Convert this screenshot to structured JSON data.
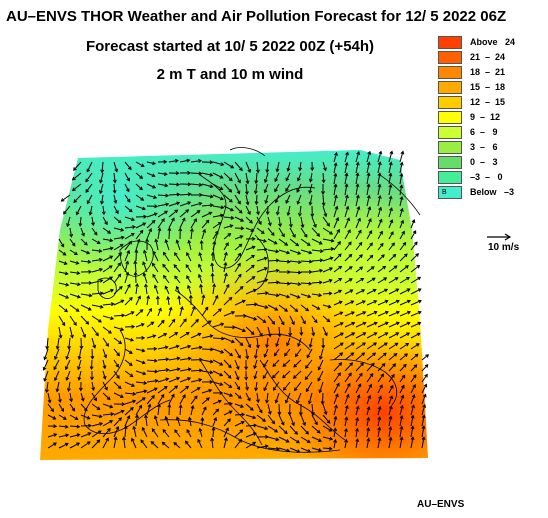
{
  "title_line1": "AU–ENVS THOR Weather and Air Pollution Forecast for 12/ 5 2022  06Z",
  "title_line2": "Forecast started at 10/ 5 2022  00Z (+54h)",
  "title_line3": "2 m T and 10 m wind",
  "legend": [
    {
      "label": "Above   24",
      "color": "#ff4000"
    },
    {
      "label": "21  –  24",
      "color": "#ff6000"
    },
    {
      "label": "18  –  21",
      "color": "#ff8800"
    },
    {
      "label": "15  –  18",
      "color": "#ffaa00"
    },
    {
      "label": "12  –  15",
      "color": "#ffcc00"
    },
    {
      "label": "9  –  12",
      "color": "#ffff00"
    },
    {
      "label": "6  –   9",
      "color": "#ccff33"
    },
    {
      "label": "3  –   6",
      "color": "#99ee44"
    },
    {
      "label": "0  –   3",
      "color": "#66dd66"
    },
    {
      "label": "–3  –   0",
      "color": "#44ee99"
    },
    {
      "label": "Below   –3",
      "color": "#44eecc",
      "mark": "B"
    }
  ],
  "wind_scale_label": "10 m/s",
  "footer": "AU–ENVS"
}
